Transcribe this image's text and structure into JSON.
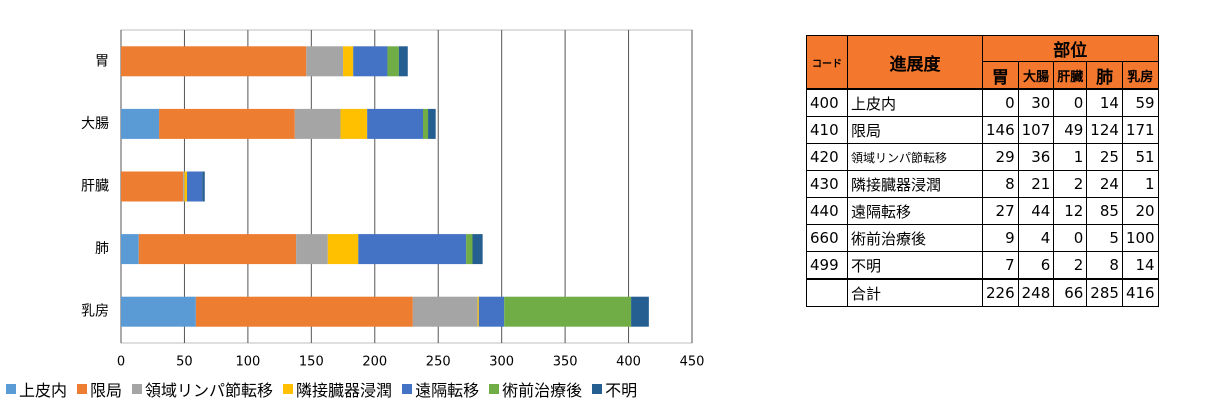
{
  "chart_data": {
    "type": "stacked-barh",
    "categories": [
      "胃",
      "大腸",
      "肝臓",
      "肺",
      "乳房"
    ],
    "series": [
      {
        "name": "上皮内",
        "color": "#5b9bd5",
        "values": [
          0,
          30,
          0,
          14,
          59
        ]
      },
      {
        "name": "限局",
        "color": "#ed7d31",
        "values": [
          146,
          107,
          49,
          124,
          171
        ]
      },
      {
        "name": "領域リンパ節転移",
        "color": "#a5a5a5",
        "values": [
          29,
          36,
          1,
          25,
          51
        ]
      },
      {
        "name": "隣接臓器浸潤",
        "color": "#ffc000",
        "values": [
          8,
          21,
          2,
          24,
          1
        ]
      },
      {
        "name": "遠隔転移",
        "color": "#4472c4",
        "values": [
          27,
          44,
          12,
          85,
          20
        ]
      },
      {
        "name": "術前治療後",
        "color": "#70ad47",
        "values": [
          9,
          4,
          0,
          5,
          100
        ]
      },
      {
        "name": "不明",
        "color": "#255e91",
        "values": [
          7,
          6,
          2,
          8,
          14
        ]
      }
    ],
    "xlim": [
      0,
      450
    ],
    "xticks": [
      0,
      50,
      100,
      150,
      200,
      250,
      300,
      350,
      400,
      450
    ],
    "grid": true,
    "legend": "bottom"
  },
  "table": {
    "header": {
      "code": "コード",
      "stage": "進展度",
      "site": "部位",
      "sites": [
        "胃",
        "大腸",
        "肝臓",
        "肺",
        "乳房"
      ]
    },
    "rows": [
      {
        "code": "400",
        "label": "上皮内",
        "values": [
          0,
          30,
          0,
          14,
          59
        ]
      },
      {
        "code": "410",
        "label": "限局",
        "values": [
          146,
          107,
          49,
          124,
          171
        ]
      },
      {
        "code": "420",
        "label": "領域リンパ節転移",
        "values": [
          29,
          36,
          1,
          25,
          51
        ]
      },
      {
        "code": "430",
        "label": "隣接臓器浸潤",
        "values": [
          8,
          21,
          2,
          24,
          1
        ]
      },
      {
        "code": "440",
        "label": "遠隔転移",
        "values": [
          27,
          44,
          12,
          85,
          20
        ]
      },
      {
        "code": "660",
        "label": "術前治療後",
        "values": [
          9,
          4,
          0,
          5,
          100
        ]
      },
      {
        "code": "499",
        "label": "不明",
        "values": [
          7,
          6,
          2,
          8,
          14
        ]
      }
    ],
    "total": {
      "label": "合計",
      "values": [
        226,
        248,
        66,
        285,
        416
      ]
    }
  }
}
